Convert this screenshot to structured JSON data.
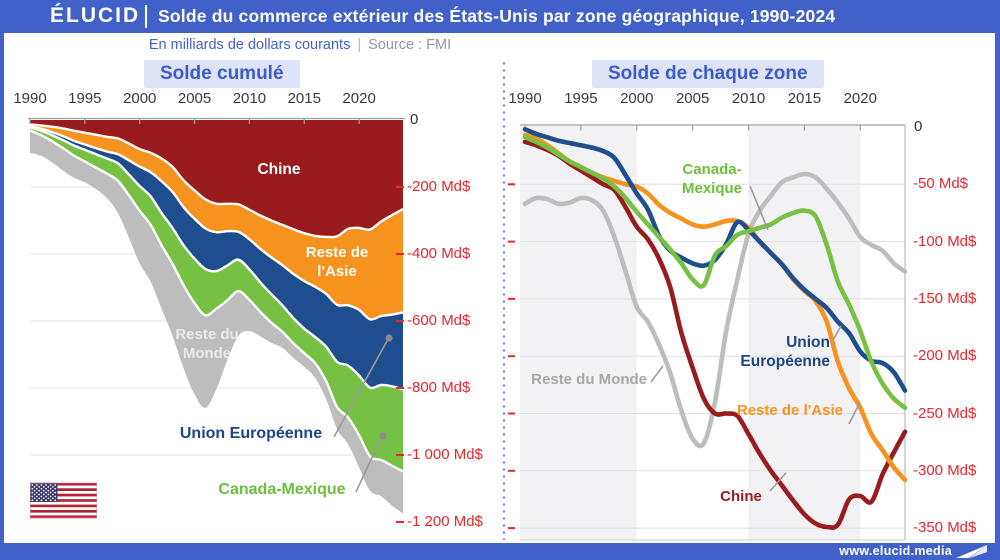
{
  "header": {
    "logo": "ÉLUCID",
    "title": "Solde du commerce extérieur des États-Unis par zone géographique, 1990-2024"
  },
  "subtitle": {
    "unit": "En milliards de dollars courants",
    "sep": "|",
    "source": "Source : FMI"
  },
  "footer": {
    "url": "www.elucid.media"
  },
  "colors": {
    "brand_blue": "#4161C8",
    "chip_bg": "#DEE3F7",
    "chip_text": "#3D5BC6",
    "axis_red": "#E9262D",
    "chine": "#9A1B1E",
    "reste_asie": "#F6921E",
    "union_europeenne": "#1F4E8F",
    "canada_mexique": "#76C043",
    "reste_monde": "#BDBDBD"
  },
  "chart_data": [
    {
      "type": "area",
      "title": "Solde cumulé",
      "subtitle_unit": "Md$ courants",
      "stacked": true,
      "stack_order": [
        "Chine",
        "Reste de l'Asie",
        "Union Européenne",
        "Canada-Mexique",
        "Reste du Monde"
      ],
      "xticks": [
        1990,
        1995,
        2000,
        2005,
        2010,
        2015,
        2020
      ],
      "xlim": [
        1990,
        2024
      ],
      "ylim": [
        -1200,
        0
      ],
      "ytick_step": 200,
      "yticks_labels": [
        "0",
        "-200 Md$",
        "-400 Md$",
        "-600 Md$",
        "-800 Md$",
        "-1 000 Md$",
        "-1 200 Md$"
      ],
      "grid": "horizontal",
      "note": "Cumulative stack of the five zone series (values in chart_data[1].series)"
    },
    {
      "type": "line",
      "title": "Solde de chaque zone",
      "xticks": [
        1990,
        1995,
        2000,
        2005,
        2010,
        2015,
        2020
      ],
      "xlim": [
        1990,
        2024
      ],
      "ylim": [
        -350,
        0
      ],
      "ytick_step": 50,
      "yticks_labels": [
        "0",
        "-50 Md$",
        "-100 Md$",
        "-150 Md$",
        "-200 Md$",
        "-250 Md$",
        "-300 Md$",
        "-350 Md$"
      ],
      "shaded_decades": [
        [
          1990,
          2000
        ],
        [
          2010,
          2020
        ]
      ],
      "grid": "horizontal",
      "x": [
        1990,
        1991,
        1992,
        1993,
        1994,
        1995,
        1996,
        1997,
        1998,
        1999,
        2000,
        2001,
        2002,
        2003,
        2004,
        2005,
        2006,
        2007,
        2008,
        2009,
        2010,
        2011,
        2012,
        2013,
        2014,
        2015,
        2016,
        2017,
        2018,
        2019,
        2020,
        2021,
        2022,
        2023,
        2024
      ],
      "series": [
        {
          "name": "Chine",
          "color": "#9A1B1E",
          "values": [
            -13,
            -16,
            -20,
            -25,
            -32,
            -38,
            -44,
            -50,
            -55,
            -70,
            -87,
            -98,
            -115,
            -140,
            -180,
            -210,
            -237,
            -250,
            -250,
            -252,
            -268,
            -285,
            -300,
            -313,
            -326,
            -338,
            -346,
            -349,
            -347,
            -325,
            -322,
            -327,
            -303,
            -284,
            -266
          ]
        },
        {
          "name": "Reste de l'Asie",
          "color": "#F6921E",
          "values": [
            -7,
            -10,
            -16,
            -23,
            -30,
            -35,
            -40,
            -44,
            -47,
            -50,
            -52,
            -58,
            -68,
            -75,
            -80,
            -85,
            -87,
            -85,
            -82,
            -82,
            -88,
            -100,
            -110,
            -120,
            -133,
            -143,
            -152,
            -170,
            -205,
            -228,
            -245,
            -268,
            -282,
            -297,
            -308
          ]
        },
        {
          "name": "Union Européenne",
          "color": "#1F4E8F",
          "values": [
            -2,
            -6,
            -9,
            -12,
            -14,
            -16,
            -18,
            -21,
            -27,
            -42,
            -58,
            -72,
            -95,
            -108,
            -114,
            -119,
            -121,
            -116,
            -102,
            -83,
            -90,
            -100,
            -110,
            -120,
            -132,
            -142,
            -150,
            -158,
            -170,
            -180,
            -196,
            -204,
            -206,
            -214,
            -230
          ]
        },
        {
          "name": "Canada-Mexique",
          "color": "#76C043",
          "values": [
            -9,
            -13,
            -18,
            -24,
            -30,
            -35,
            -40,
            -45,
            -52,
            -62,
            -74,
            -85,
            -96,
            -107,
            -119,
            -133,
            -138,
            -112,
            -104,
            -94,
            -91,
            -88,
            -85,
            -79,
            -75,
            -73,
            -78,
            -103,
            -135,
            -155,
            -178,
            -205,
            -224,
            -237,
            -245
          ]
        },
        {
          "name": "Reste du Monde",
          "color": "#BDBDBD",
          "values": [
            -67,
            -62,
            -63,
            -67,
            -66,
            -62,
            -64,
            -73,
            -96,
            -126,
            -157,
            -170,
            -190,
            -215,
            -248,
            -272,
            -276,
            -240,
            -178,
            -133,
            -93,
            -73,
            -60,
            -48,
            -44,
            -41,
            -44,
            -54,
            -66,
            -80,
            -96,
            -103,
            -108,
            -119,
            -126
          ]
        }
      ]
    }
  ]
}
